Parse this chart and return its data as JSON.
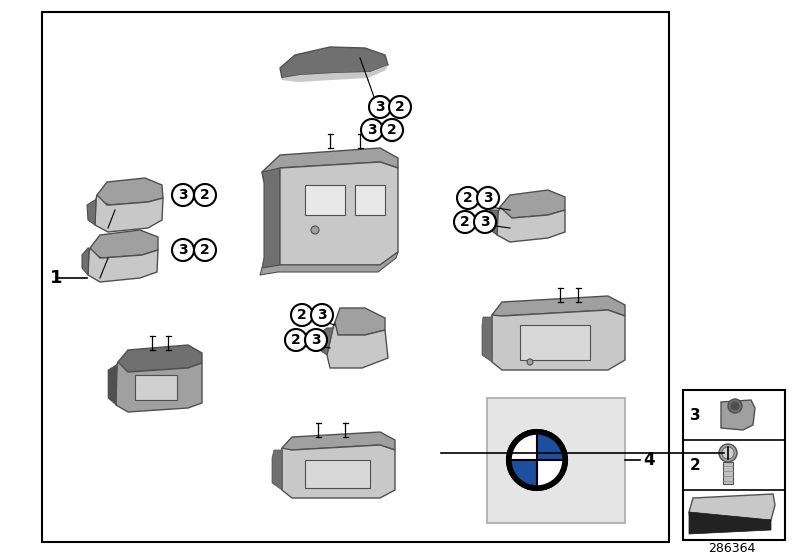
{
  "bg_color": "#ffffff",
  "part_number": "286364",
  "border_color": "#000000",
  "gray_light": "#c8c8c8",
  "gray_mid": "#a0a0a0",
  "gray_dark": "#707070",
  "gray_darker": "#505050",
  "circle_bg": "#ffffff",
  "circle_border": "#000000",
  "bmw_blue": "#1c4fa0",
  "screw_tick": 5
}
